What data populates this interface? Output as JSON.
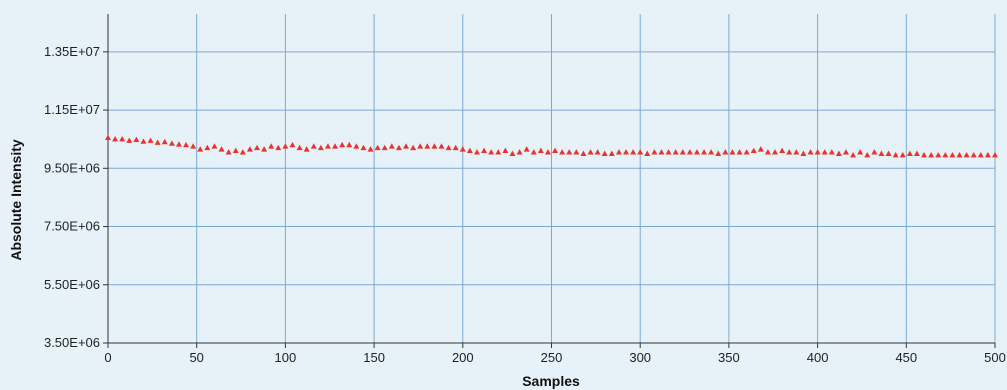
{
  "chart_data": {
    "type": "scatter",
    "title": "",
    "xlabel": "Samples",
    "ylabel": "Absolute Intensity",
    "xlim": [
      0,
      500
    ],
    "ylim": [
      3500000,
      14800000
    ],
    "x_ticks": [
      0,
      50,
      100,
      150,
      200,
      250,
      300,
      350,
      400,
      450,
      500
    ],
    "x_tick_labels": [
      "0",
      "50",
      "100",
      "150",
      "200",
      "250",
      "300",
      "350",
      "400",
      "450",
      "500"
    ],
    "y_ticks": [
      3500000,
      5500000,
      7500000,
      9500000,
      11500000,
      13500000
    ],
    "y_tick_labels": [
      "3.50E+06",
      "5.50E+06",
      "7.50E+06",
      "9.50E+06",
      "1.15E+07",
      "1.35E+07"
    ],
    "grid": true,
    "marker": "triangle",
    "color": "#e8332e",
    "series": [
      {
        "x": [
          0,
          4,
          8,
          12,
          16,
          20,
          24,
          28,
          32,
          36,
          40,
          44,
          48,
          52,
          56,
          60,
          64,
          68,
          72,
          76,
          80,
          84,
          88,
          92,
          96,
          100,
          104,
          108,
          112,
          116,
          120,
          124,
          128,
          132,
          136,
          140,
          144,
          148,
          152,
          156,
          160,
          164,
          168,
          172,
          176,
          180,
          184,
          188,
          192,
          196,
          200,
          204,
          208,
          212,
          216,
          220,
          224,
          228,
          232,
          236,
          240,
          244,
          248,
          252,
          256,
          260,
          264,
          268,
          272,
          276,
          280,
          284,
          288,
          292,
          296,
          300,
          304,
          308,
          312,
          316,
          320,
          324,
          328,
          332,
          336,
          340,
          344,
          348,
          352,
          356,
          360,
          364,
          368,
          372,
          376,
          380,
          384,
          388,
          392,
          396,
          400,
          404,
          408,
          412,
          416,
          420,
          424,
          428,
          432,
          436,
          440,
          444,
          448,
          452,
          456,
          460,
          464,
          468,
          472,
          476,
          480,
          484,
          488,
          492,
          496,
          500
        ],
        "y": [
          10550000,
          10500000,
          10500000,
          10450000,
          10480000,
          10420000,
          10450000,
          10380000,
          10400000,
          10350000,
          10320000,
          10300000,
          10250000,
          10150000,
          10200000,
          10250000,
          10150000,
          10050000,
          10100000,
          10050000,
          10150000,
          10200000,
          10150000,
          10250000,
          10200000,
          10250000,
          10300000,
          10200000,
          10150000,
          10250000,
          10200000,
          10250000,
          10250000,
          10300000,
          10300000,
          10250000,
          10200000,
          10150000,
          10200000,
          10200000,
          10250000,
          10200000,
          10250000,
          10200000,
          10250000,
          10250000,
          10250000,
          10250000,
          10200000,
          10200000,
          10150000,
          10100000,
          10050000,
          10100000,
          10050000,
          10050000,
          10100000,
          10000000,
          10050000,
          10150000,
          10050000,
          10100000,
          10050000,
          10100000,
          10050000,
          10050000,
          10050000,
          10000000,
          10050000,
          10050000,
          10000000,
          10000000,
          10050000,
          10050000,
          10050000,
          10050000,
          10000000,
          10050000,
          10050000,
          10050000,
          10050000,
          10050000,
          10050000,
          10050000,
          10050000,
          10050000,
          10000000,
          10050000,
          10050000,
          10050000,
          10050000,
          10100000,
          10150000,
          10050000,
          10050000,
          10100000,
          10050000,
          10050000,
          10000000,
          10050000,
          10050000,
          10050000,
          10050000,
          10000000,
          10050000,
          9950000,
          10050000,
          9950000,
          10050000,
          10000000,
          10000000,
          9950000,
          9950000,
          10000000,
          10000000,
          9950000,
          9950000,
          9950000,
          9950000,
          9950000,
          9950000,
          9950000,
          9950000,
          9950000,
          9950000,
          9950000
        ]
      }
    ]
  }
}
